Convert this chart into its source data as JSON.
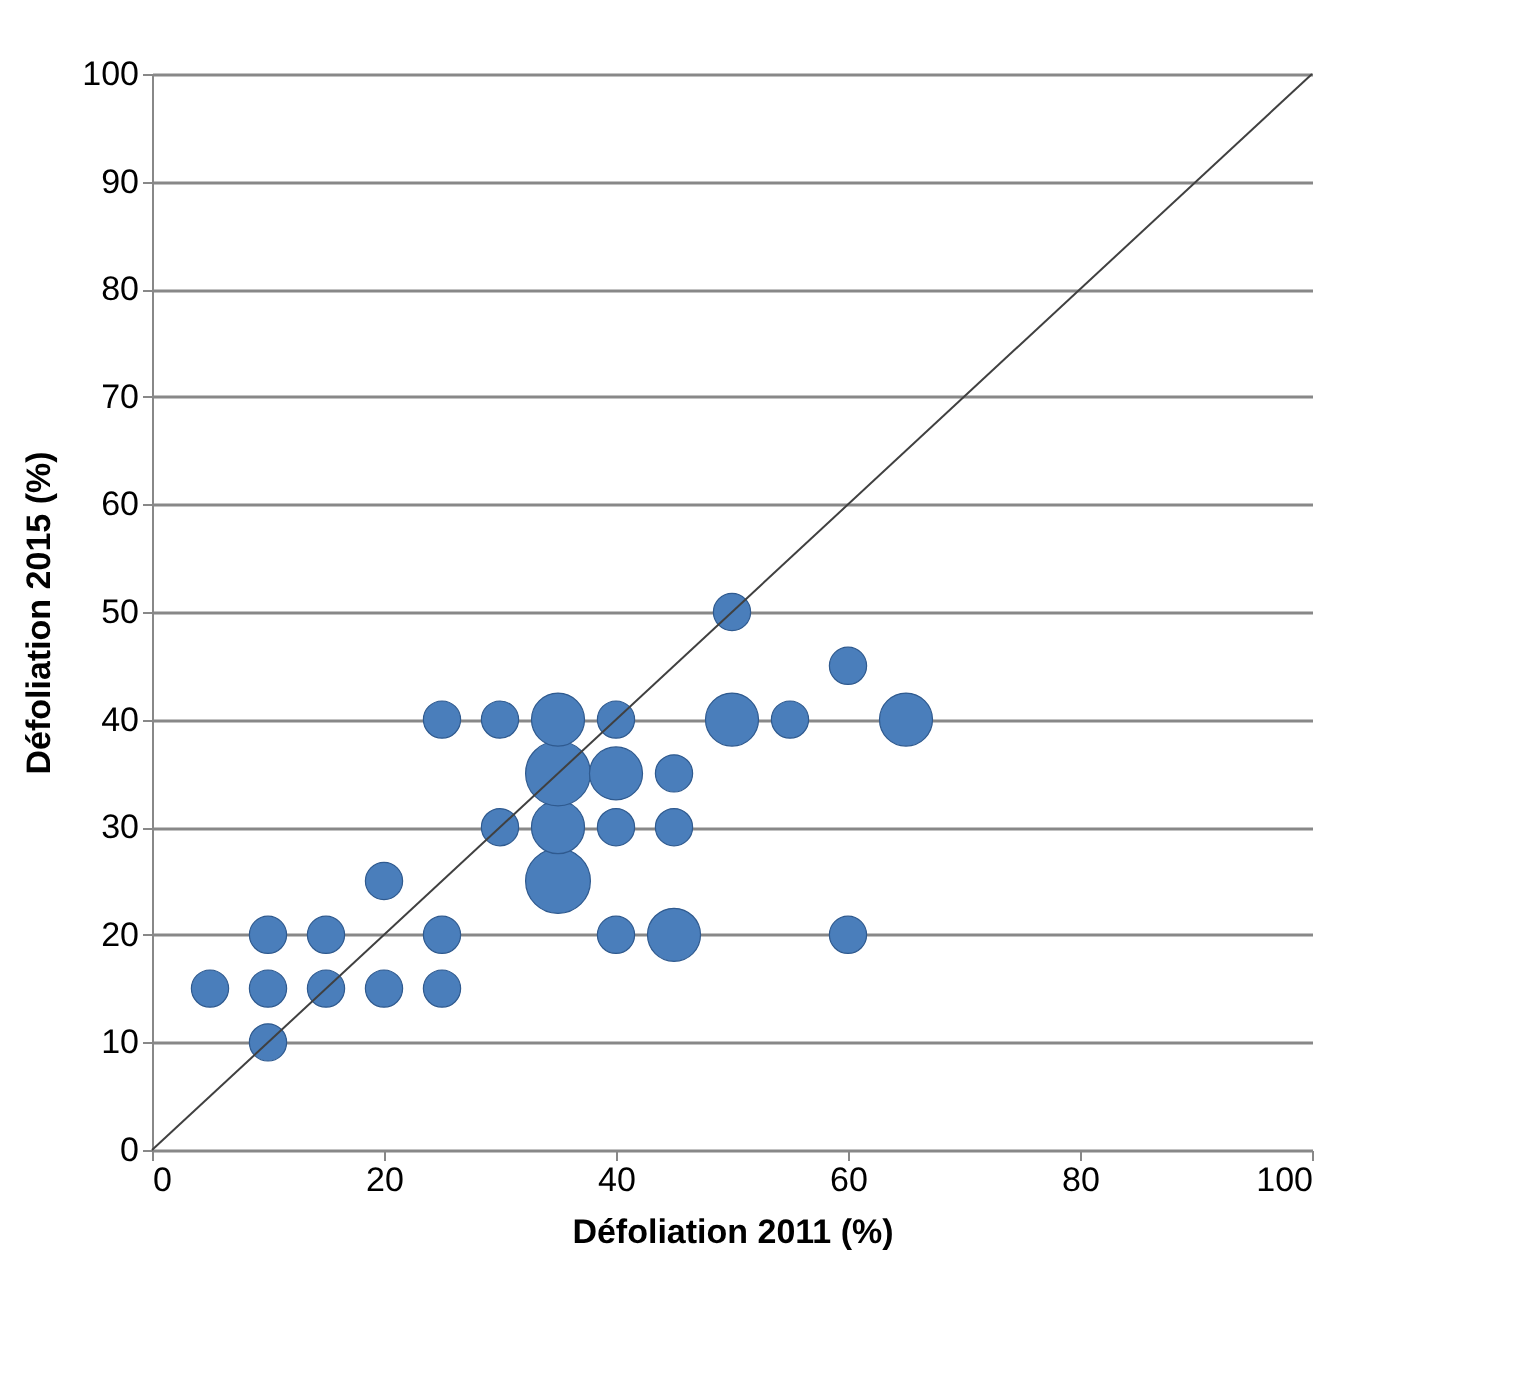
{
  "chart_data": {
    "type": "bubble",
    "xlabel": "Défoliation 2011 (%)",
    "ylabel": "Défoliation 2015 (%)",
    "xlim": [
      0,
      100
    ],
    "ylim": [
      0,
      100
    ],
    "xticks": [
      0,
      20,
      40,
      60,
      80,
      100
    ],
    "yticks": [
      0,
      10,
      20,
      30,
      40,
      50,
      60,
      70,
      80,
      90,
      100
    ],
    "grid": "y",
    "legend": false,
    "series": [
      {
        "type": "bubble",
        "color": "#4a7ebb",
        "x": [
          5,
          10,
          10,
          10,
          15,
          15,
          20,
          20,
          25,
          25,
          25,
          30,
          30,
          35,
          35,
          35,
          35,
          40,
          40,
          40,
          40,
          45,
          45,
          45,
          50,
          50,
          55,
          60,
          60,
          65
        ],
        "values": [
          15,
          10,
          15,
          20,
          15,
          20,
          15,
          25,
          15,
          20,
          40,
          30,
          40,
          25,
          30,
          35,
          40,
          20,
          30,
          35,
          40,
          20,
          30,
          35,
          40,
          50,
          40,
          20,
          45,
          40
        ],
        "sizes": [
          0.33,
          0.33,
          0.33,
          0.33,
          0.33,
          0.33,
          0.33,
          0.33,
          0.33,
          0.33,
          0.33,
          0.33,
          0.33,
          1,
          0.67,
          1,
          0.67,
          0.33,
          0.33,
          0.67,
          0.33,
          0.67,
          0.33,
          0.33,
          0.67,
          0.33,
          0.33,
          0.33,
          0.33,
          0.67
        ]
      },
      {
        "type": "line",
        "color": "#404040",
        "x": [
          0,
          100
        ],
        "values": [
          0,
          100
        ]
      }
    ]
  }
}
